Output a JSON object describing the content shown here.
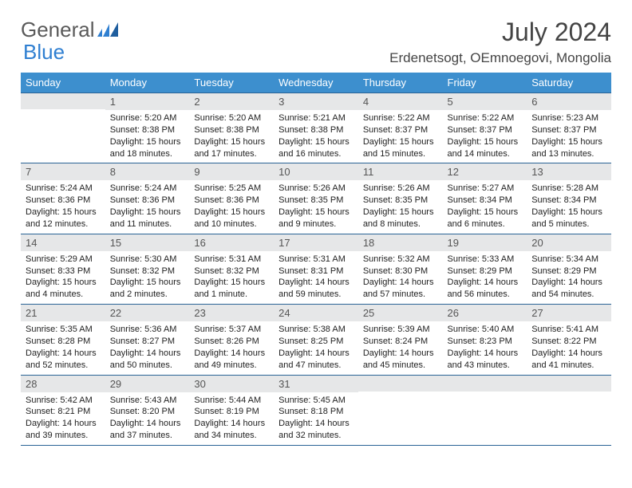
{
  "brand": {
    "part1": "General",
    "part2": "Blue"
  },
  "title": "July 2024",
  "location": "Erdenetsogt, OEmnoegovi, Mongolia",
  "colors": {
    "header_bg": "#3d8fce",
    "header_text": "#ffffff",
    "daynum_bg": "#e6e7e8",
    "rule": "#2a6496",
    "brand_gray": "#5a5a5a",
    "brand_blue": "#2f7fd1"
  },
  "weekdays": [
    "Sunday",
    "Monday",
    "Tuesday",
    "Wednesday",
    "Thursday",
    "Friday",
    "Saturday"
  ],
  "weeks": [
    [
      {
        "num": "",
        "sunrise": "",
        "sunset": "",
        "daylight": ""
      },
      {
        "num": "1",
        "sunrise": "Sunrise: 5:20 AM",
        "sunset": "Sunset: 8:38 PM",
        "daylight": "Daylight: 15 hours and 18 minutes."
      },
      {
        "num": "2",
        "sunrise": "Sunrise: 5:20 AM",
        "sunset": "Sunset: 8:38 PM",
        "daylight": "Daylight: 15 hours and 17 minutes."
      },
      {
        "num": "3",
        "sunrise": "Sunrise: 5:21 AM",
        "sunset": "Sunset: 8:38 PM",
        "daylight": "Daylight: 15 hours and 16 minutes."
      },
      {
        "num": "4",
        "sunrise": "Sunrise: 5:22 AM",
        "sunset": "Sunset: 8:37 PM",
        "daylight": "Daylight: 15 hours and 15 minutes."
      },
      {
        "num": "5",
        "sunrise": "Sunrise: 5:22 AM",
        "sunset": "Sunset: 8:37 PM",
        "daylight": "Daylight: 15 hours and 14 minutes."
      },
      {
        "num": "6",
        "sunrise": "Sunrise: 5:23 AM",
        "sunset": "Sunset: 8:37 PM",
        "daylight": "Daylight: 15 hours and 13 minutes."
      }
    ],
    [
      {
        "num": "7",
        "sunrise": "Sunrise: 5:24 AM",
        "sunset": "Sunset: 8:36 PM",
        "daylight": "Daylight: 15 hours and 12 minutes."
      },
      {
        "num": "8",
        "sunrise": "Sunrise: 5:24 AM",
        "sunset": "Sunset: 8:36 PM",
        "daylight": "Daylight: 15 hours and 11 minutes."
      },
      {
        "num": "9",
        "sunrise": "Sunrise: 5:25 AM",
        "sunset": "Sunset: 8:36 PM",
        "daylight": "Daylight: 15 hours and 10 minutes."
      },
      {
        "num": "10",
        "sunrise": "Sunrise: 5:26 AM",
        "sunset": "Sunset: 8:35 PM",
        "daylight": "Daylight: 15 hours and 9 minutes."
      },
      {
        "num": "11",
        "sunrise": "Sunrise: 5:26 AM",
        "sunset": "Sunset: 8:35 PM",
        "daylight": "Daylight: 15 hours and 8 minutes."
      },
      {
        "num": "12",
        "sunrise": "Sunrise: 5:27 AM",
        "sunset": "Sunset: 8:34 PM",
        "daylight": "Daylight: 15 hours and 6 minutes."
      },
      {
        "num": "13",
        "sunrise": "Sunrise: 5:28 AM",
        "sunset": "Sunset: 8:34 PM",
        "daylight": "Daylight: 15 hours and 5 minutes."
      }
    ],
    [
      {
        "num": "14",
        "sunrise": "Sunrise: 5:29 AM",
        "sunset": "Sunset: 8:33 PM",
        "daylight": "Daylight: 15 hours and 4 minutes."
      },
      {
        "num": "15",
        "sunrise": "Sunrise: 5:30 AM",
        "sunset": "Sunset: 8:32 PM",
        "daylight": "Daylight: 15 hours and 2 minutes."
      },
      {
        "num": "16",
        "sunrise": "Sunrise: 5:31 AM",
        "sunset": "Sunset: 8:32 PM",
        "daylight": "Daylight: 15 hours and 1 minute."
      },
      {
        "num": "17",
        "sunrise": "Sunrise: 5:31 AM",
        "sunset": "Sunset: 8:31 PM",
        "daylight": "Daylight: 14 hours and 59 minutes."
      },
      {
        "num": "18",
        "sunrise": "Sunrise: 5:32 AM",
        "sunset": "Sunset: 8:30 PM",
        "daylight": "Daylight: 14 hours and 57 minutes."
      },
      {
        "num": "19",
        "sunrise": "Sunrise: 5:33 AM",
        "sunset": "Sunset: 8:29 PM",
        "daylight": "Daylight: 14 hours and 56 minutes."
      },
      {
        "num": "20",
        "sunrise": "Sunrise: 5:34 AM",
        "sunset": "Sunset: 8:29 PM",
        "daylight": "Daylight: 14 hours and 54 minutes."
      }
    ],
    [
      {
        "num": "21",
        "sunrise": "Sunrise: 5:35 AM",
        "sunset": "Sunset: 8:28 PM",
        "daylight": "Daylight: 14 hours and 52 minutes."
      },
      {
        "num": "22",
        "sunrise": "Sunrise: 5:36 AM",
        "sunset": "Sunset: 8:27 PM",
        "daylight": "Daylight: 14 hours and 50 minutes."
      },
      {
        "num": "23",
        "sunrise": "Sunrise: 5:37 AM",
        "sunset": "Sunset: 8:26 PM",
        "daylight": "Daylight: 14 hours and 49 minutes."
      },
      {
        "num": "24",
        "sunrise": "Sunrise: 5:38 AM",
        "sunset": "Sunset: 8:25 PM",
        "daylight": "Daylight: 14 hours and 47 minutes."
      },
      {
        "num": "25",
        "sunrise": "Sunrise: 5:39 AM",
        "sunset": "Sunset: 8:24 PM",
        "daylight": "Daylight: 14 hours and 45 minutes."
      },
      {
        "num": "26",
        "sunrise": "Sunrise: 5:40 AM",
        "sunset": "Sunset: 8:23 PM",
        "daylight": "Daylight: 14 hours and 43 minutes."
      },
      {
        "num": "27",
        "sunrise": "Sunrise: 5:41 AM",
        "sunset": "Sunset: 8:22 PM",
        "daylight": "Daylight: 14 hours and 41 minutes."
      }
    ],
    [
      {
        "num": "28",
        "sunrise": "Sunrise: 5:42 AM",
        "sunset": "Sunset: 8:21 PM",
        "daylight": "Daylight: 14 hours and 39 minutes."
      },
      {
        "num": "29",
        "sunrise": "Sunrise: 5:43 AM",
        "sunset": "Sunset: 8:20 PM",
        "daylight": "Daylight: 14 hours and 37 minutes."
      },
      {
        "num": "30",
        "sunrise": "Sunrise: 5:44 AM",
        "sunset": "Sunset: 8:19 PM",
        "daylight": "Daylight: 14 hours and 34 minutes."
      },
      {
        "num": "31",
        "sunrise": "Sunrise: 5:45 AM",
        "sunset": "Sunset: 8:18 PM",
        "daylight": "Daylight: 14 hours and 32 minutes."
      },
      {
        "num": "",
        "sunrise": "",
        "sunset": "",
        "daylight": ""
      },
      {
        "num": "",
        "sunrise": "",
        "sunset": "",
        "daylight": ""
      },
      {
        "num": "",
        "sunrise": "",
        "sunset": "",
        "daylight": ""
      }
    ]
  ]
}
